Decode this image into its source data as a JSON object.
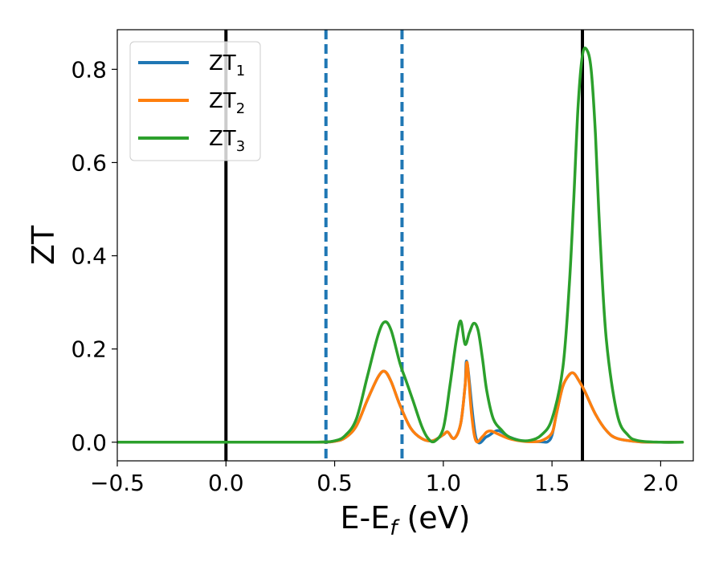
{
  "chart_data": {
    "type": "line",
    "xlabel": "E-E_f (eV)",
    "xlabel_parts": {
      "main": "E-E",
      "sub": "f",
      "rest": " (eV)"
    },
    "ylabel": "ZT",
    "xlim": [
      -0.5,
      2.15
    ],
    "ylim": [
      -0.04,
      0.885
    ],
    "xticks": [
      -0.5,
      0.0,
      0.5,
      1.0,
      1.5,
      2.0
    ],
    "xtick_labels": [
      "−0.5",
      "0.0",
      "0.5",
      "1.0",
      "1.5",
      "2.0"
    ],
    "yticks": [
      0.0,
      0.2,
      0.4,
      0.6,
      0.8
    ],
    "ytick_labels": [
      "0.0",
      "0.2",
      "0.4",
      "0.6",
      "0.8"
    ],
    "grid": false,
    "legend_position": "top-left",
    "vertical_lines": [
      {
        "x": 0.0,
        "style": "solid",
        "color": "#000000"
      },
      {
        "x": 0.46,
        "style": "dashed",
        "color": "#1f77b4"
      },
      {
        "x": 0.81,
        "style": "dashed",
        "color": "#1f77b4"
      },
      {
        "x": 1.64,
        "style": "solid",
        "color": "#000000"
      }
    ],
    "series": [
      {
        "name": "ZT_1",
        "label_main": "ZT",
        "label_sub": "1",
        "color": "#1f77b4",
        "x": [
          -0.5,
          0.0,
          0.4,
          0.5,
          0.55,
          0.6,
          0.65,
          0.7,
          0.73,
          0.76,
          0.8,
          0.85,
          0.9,
          0.95,
          1.0,
          1.02,
          1.05,
          1.08,
          1.1,
          1.11,
          1.15,
          1.2,
          1.25,
          1.3,
          1.35,
          1.4,
          1.45,
          1.48,
          1.5,
          1.52,
          1.55,
          1.58,
          1.6,
          1.62,
          1.65,
          1.7,
          1.75,
          1.8,
          1.9,
          2.0,
          2.1
        ],
        "y": [
          0.0,
          0.0,
          0.0,
          0.002,
          0.01,
          0.035,
          0.09,
          0.14,
          0.152,
          0.13,
          0.08,
          0.03,
          0.008,
          0.003,
          0.016,
          0.022,
          0.008,
          0.04,
          0.12,
          0.17,
          0.01,
          0.012,
          0.025,
          0.012,
          0.004,
          0.002,
          0.001,
          0.001,
          0.015,
          0.06,
          0.12,
          0.145,
          0.148,
          0.135,
          0.11,
          0.06,
          0.025,
          0.008,
          0.001,
          0.0,
          0.0
        ]
      },
      {
        "name": "ZT_2",
        "label_main": "ZT",
        "label_sub": "2",
        "color": "#ff7f0e",
        "x": [
          -0.5,
          0.0,
          0.4,
          0.5,
          0.55,
          0.6,
          0.65,
          0.7,
          0.73,
          0.76,
          0.8,
          0.85,
          0.9,
          0.95,
          1.0,
          1.02,
          1.05,
          1.08,
          1.1,
          1.11,
          1.13,
          1.15,
          1.18,
          1.2,
          1.22,
          1.25,
          1.3,
          1.35,
          1.4,
          1.45,
          1.5,
          1.52,
          1.55,
          1.58,
          1.6,
          1.62,
          1.65,
          1.7,
          1.75,
          1.8,
          1.9,
          2.0,
          2.1
        ],
        "y": [
          0.0,
          0.0,
          0.0,
          0.002,
          0.01,
          0.035,
          0.09,
          0.14,
          0.152,
          0.13,
          0.08,
          0.03,
          0.008,
          0.003,
          0.016,
          0.022,
          0.008,
          0.04,
          0.12,
          0.17,
          0.06,
          0.003,
          0.012,
          0.022,
          0.024,
          0.018,
          0.008,
          0.003,
          0.001,
          0.003,
          0.02,
          0.06,
          0.12,
          0.145,
          0.148,
          0.135,
          0.11,
          0.06,
          0.025,
          0.008,
          0.001,
          0.0,
          0.0
        ]
      },
      {
        "name": "ZT_3",
        "label_main": "ZT",
        "label_sub": "3",
        "color": "#2ca02c",
        "x": [
          -0.5,
          0.0,
          0.4,
          0.5,
          0.55,
          0.6,
          0.65,
          0.7,
          0.73,
          0.76,
          0.8,
          0.83,
          0.86,
          0.9,
          0.93,
          0.96,
          1.0,
          1.03,
          1.06,
          1.08,
          1.1,
          1.12,
          1.14,
          1.16,
          1.18,
          1.2,
          1.23,
          1.27,
          1.3,
          1.35,
          1.4,
          1.45,
          1.5,
          1.55,
          1.58,
          1.6,
          1.62,
          1.64,
          1.66,
          1.68,
          1.7,
          1.72,
          1.75,
          1.8,
          1.85,
          1.9,
          2.0,
          2.1
        ],
        "y": [
          0.0,
          0.0,
          0.0,
          0.003,
          0.015,
          0.05,
          0.14,
          0.23,
          0.258,
          0.24,
          0.17,
          0.13,
          0.09,
          0.035,
          0.008,
          0.002,
          0.03,
          0.12,
          0.22,
          0.26,
          0.21,
          0.235,
          0.255,
          0.24,
          0.18,
          0.11,
          0.05,
          0.025,
          0.012,
          0.004,
          0.004,
          0.015,
          0.05,
          0.16,
          0.34,
          0.52,
          0.72,
          0.83,
          0.842,
          0.8,
          0.66,
          0.45,
          0.22,
          0.06,
          0.015,
          0.003,
          0.0,
          0.0
        ]
      }
    ]
  }
}
